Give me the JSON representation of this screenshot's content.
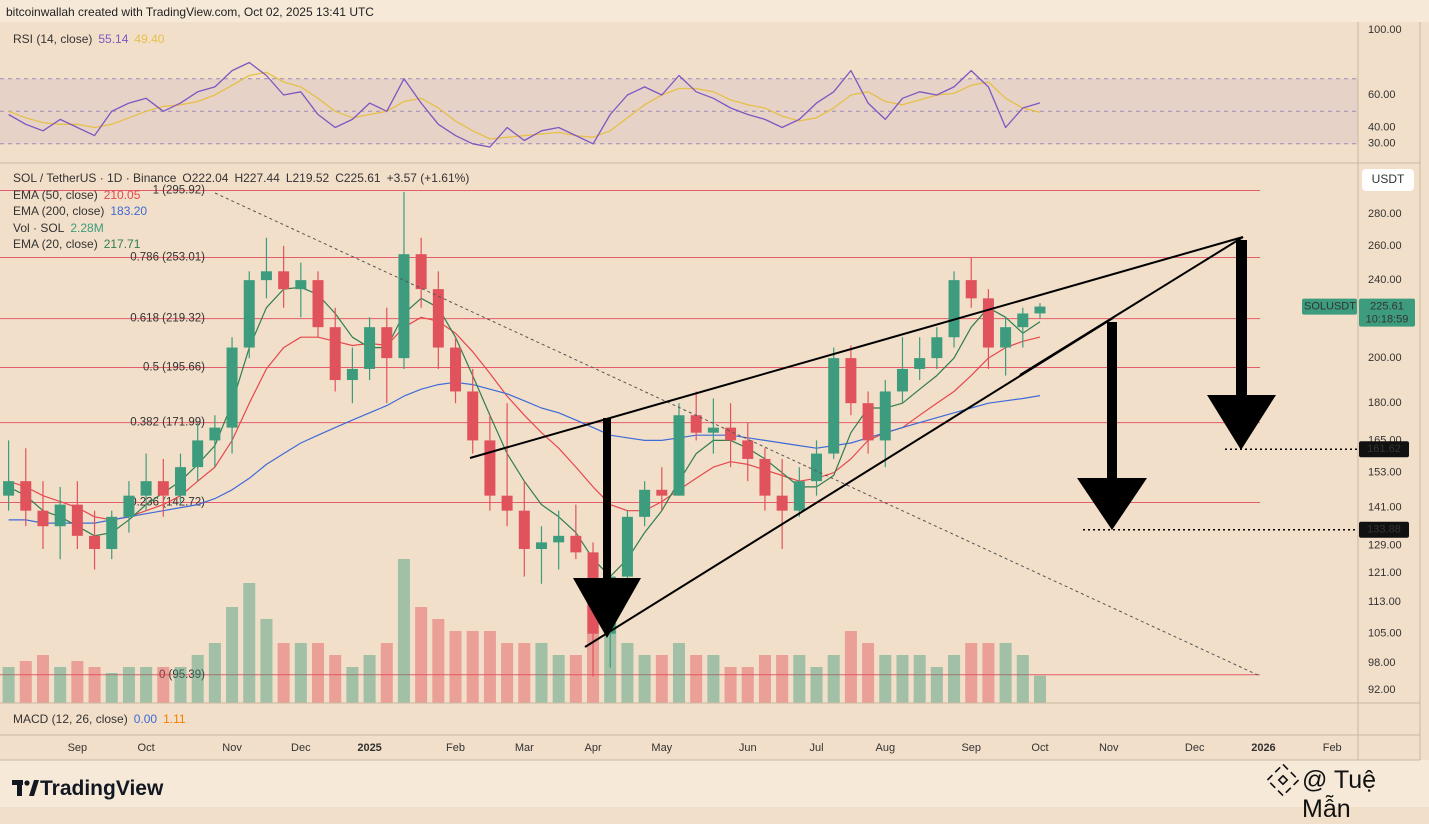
{
  "header": "bitcoinwallah created with TradingView.com, Oct 02, 2025 13:41 UTC",
  "footer": {
    "brand": "TradingView",
    "author": "@ Tuệ Mẫn"
  },
  "chart_data": {
    "type": "candlestick",
    "symbol": "SOL / TetherUS · 1D · Binance",
    "ohlc_labels": [
      "O222.04",
      "H227.44",
      "L219.52",
      "C225.61"
    ],
    "change": "+3.57 (+1.61%)",
    "currency": "USDT",
    "log": true,
    "grid": false,
    "up_color": "#3d9c7d",
    "down_color": "#e0535c",
    "ylim": [
      89.3,
      315.6
    ],
    "yticks": [
      {
        "value": 280,
        "label": "280.00"
      },
      {
        "value": 260,
        "label": "260.00"
      },
      {
        "value": 240,
        "label": "240.00"
      },
      {
        "value": 200,
        "label": "200.00"
      },
      {
        "value": 180,
        "label": "180.00"
      },
      {
        "value": 165,
        "label": "165.00"
      },
      {
        "value": 153,
        "label": "153.00"
      },
      {
        "value": 141,
        "label": "141.00"
      },
      {
        "value": 129,
        "label": "129.00"
      },
      {
        "value": 121,
        "label": "121.00"
      },
      {
        "value": 113,
        "label": "113.00"
      },
      {
        "value": 105,
        "label": "105.00"
      },
      {
        "value": 98,
        "label": "98.00"
      },
      {
        "value": 92,
        "label": "92.00"
      }
    ],
    "categories": [
      null,
      null,
      null,
      null,
      "Sep",
      null,
      null,
      null,
      "Oct",
      null,
      null,
      null,
      null,
      "Nov",
      null,
      null,
      null,
      "Dec",
      null,
      null,
      null,
      "2025",
      null,
      null,
      null,
      null,
      "Feb",
      null,
      null,
      null,
      "Mar",
      null,
      null,
      null,
      "Apr",
      null,
      null,
      null,
      "May",
      null,
      null,
      null,
      null,
      "Jun",
      null,
      null,
      null,
      "Jul",
      null,
      null,
      null,
      "Aug",
      null,
      null,
      null,
      null,
      "Sep",
      null,
      null,
      null,
      "Oct",
      null,
      null,
      null,
      "Nov",
      null,
      null,
      null,
      null,
      "Dec",
      null,
      null,
      null,
      "2026",
      null,
      null,
      null,
      "Feb",
      null
    ],
    "open": [
      145,
      150,
      140,
      135,
      142,
      132,
      128,
      138,
      145,
      150,
      145,
      155,
      165,
      170,
      205,
      240,
      245,
      235,
      240,
      215,
      190,
      195,
      215,
      200,
      255,
      235,
      205,
      185,
      165,
      145,
      140,
      128,
      130,
      132,
      127,
      105,
      120,
      138,
      147,
      145,
      175,
      168,
      170,
      165,
      158,
      145,
      140,
      150,
      160,
      200,
      180,
      165,
      185,
      195,
      200,
      210,
      240,
      230,
      205,
      215,
      222.04,
      null,
      null,
      null,
      null,
      null,
      null,
      null,
      null,
      null,
      null,
      null,
      null,
      null,
      null,
      null,
      null,
      null,
      null
    ],
    "high": [
      165,
      162,
      150,
      148,
      150,
      140,
      140,
      150,
      160,
      158,
      160,
      172,
      175,
      210,
      245,
      265,
      260,
      250,
      245,
      225,
      205,
      220,
      225,
      295,
      265,
      245,
      210,
      195,
      175,
      180,
      150,
      135,
      140,
      142,
      130,
      125,
      140,
      150,
      155,
      180,
      185,
      182,
      180,
      172,
      162,
      158,
      155,
      165,
      205,
      206,
      185,
      190,
      210,
      210,
      215,
      245,
      253,
      235,
      220,
      225,
      227.44,
      null,
      null,
      null,
      null,
      null,
      null,
      null,
      null,
      null,
      null,
      null,
      null,
      null,
      null,
      null,
      null,
      null,
      null
    ],
    "low": [
      140,
      135,
      128,
      125,
      128,
      122,
      125,
      133,
      140,
      138,
      142,
      150,
      155,
      160,
      200,
      230,
      225,
      220,
      210,
      185,
      180,
      190,
      180,
      195,
      225,
      195,
      180,
      160,
      140,
      135,
      120,
      118,
      122,
      125,
      95,
      97,
      118,
      135,
      140,
      145,
      165,
      160,
      155,
      150,
      140,
      128,
      138,
      145,
      158,
      175,
      160,
      155,
      180,
      190,
      195,
      205,
      225,
      195,
      192,
      205,
      219.52,
      null,
      null,
      null,
      null,
      null,
      null,
      null,
      null,
      null,
      null,
      null,
      null,
      null,
      null,
      null,
      null,
      null,
      null
    ],
    "close": [
      150,
      140,
      135,
      142,
      132,
      128,
      138,
      145,
      150,
      145,
      155,
      165,
      170,
      205,
      240,
      245,
      235,
      240,
      215,
      190,
      195,
      215,
      200,
      255,
      235,
      205,
      185,
      165,
      145,
      140,
      128,
      130,
      132,
      127,
      105,
      120,
      138,
      147,
      145,
      175,
      168,
      170,
      165,
      158,
      145,
      140,
      150,
      160,
      200,
      180,
      165,
      185,
      195,
      200,
      210,
      240,
      230,
      205,
      215,
      222,
      225.61,
      null,
      null,
      null,
      null,
      null,
      null,
      null,
      null,
      null,
      null,
      null,
      null,
      null,
      null,
      null,
      null,
      null,
      null
    ],
    "volume": {
      "name": "Vol · SOL",
      "value_label": "2.28M",
      "ylim": [
        0,
        45
      ],
      "values": [
        3,
        3.5,
        4,
        3,
        3.5,
        3,
        2.5,
        3,
        3,
        3,
        3,
        4,
        5,
        8,
        10,
        7,
        5,
        5,
        5,
        4,
        3,
        4,
        5,
        12,
        8,
        7,
        6,
        6,
        6,
        5,
        5,
        5,
        4,
        4,
        10,
        7,
        5,
        4,
        4,
        5,
        4,
        4,
        3,
        3,
        4,
        4,
        4,
        3,
        4,
        6,
        5,
        4,
        4,
        4,
        3,
        4,
        5,
        5,
        5,
        4,
        2.28,
        null,
        null,
        null,
        null,
        null,
        null,
        null,
        null,
        null,
        null,
        null,
        null,
        null,
        null,
        null,
        null,
        null,
        null
      ]
    },
    "lines": [
      {
        "name": "EMA (50, close)",
        "color": "#e5484d",
        "value_label": "210.05",
        "values": [
          150,
          148,
          145,
          143,
          141,
          138,
          137,
          138,
          140,
          142,
          145,
          150,
          155,
          165,
          180,
          195,
          205,
          210,
          210,
          208,
          206,
          207,
          206,
          215,
          220,
          218,
          212,
          203,
          193,
          183,
          175,
          168,
          162,
          155,
          148,
          142,
          140,
          140,
          143,
          147,
          151,
          155,
          157,
          156,
          154,
          152,
          150,
          151,
          153,
          158,
          165,
          168,
          170,
          175,
          180,
          185,
          192,
          200,
          205,
          208,
          210.05,
          null,
          null,
          null,
          null,
          null,
          null,
          null,
          null,
          null,
          null,
          null,
          null,
          null,
          null,
          null,
          null,
          null,
          null
        ]
      },
      {
        "name": "EMA (200, close)",
        "color": "#3f6ad8",
        "value_label": "183.20",
        "values": [
          137,
          137,
          136,
          136,
          136,
          136,
          137,
          138,
          139,
          140,
          141,
          142,
          144,
          147,
          151,
          156,
          160,
          164,
          167,
          170,
          173,
          176,
          179,
          183,
          186,
          188,
          189,
          188,
          186,
          184,
          181,
          178,
          176,
          173,
          170,
          167,
          166,
          165,
          165,
          166,
          167,
          167,
          167,
          166,
          165,
          164,
          163,
          162,
          163,
          164,
          166,
          168,
          170,
          172,
          174,
          176,
          178,
          180,
          181,
          182,
          183.2,
          null,
          null,
          null,
          null,
          null,
          null,
          null,
          null,
          null,
          null,
          null,
          null,
          null,
          null,
          null,
          null,
          null,
          null
        ]
      },
      {
        "name": "EMA (20, close)",
        "color": "#2f7d4f",
        "value_label": "217.71",
        "values": [
          148,
          145,
          140,
          138,
          135,
          132,
          133,
          137,
          142,
          146,
          150,
          156,
          163,
          180,
          205,
          225,
          235,
          236,
          232,
          222,
          210,
          205,
          205,
          222,
          230,
          225,
          210,
          192,
          175,
          160,
          150,
          142,
          138,
          133,
          125,
          120,
          125,
          133,
          140,
          150,
          160,
          165,
          165,
          162,
          158,
          153,
          148,
          148,
          152,
          168,
          178,
          178,
          180,
          186,
          192,
          200,
          215,
          225,
          220,
          212,
          217.71,
          null,
          null,
          null,
          null,
          null,
          null,
          null,
          null,
          null,
          null,
          null,
          null,
          null,
          null,
          null,
          null,
          null,
          null
        ]
      }
    ],
    "fib_color": "#e35d6a",
    "fib_levels": [
      {
        "label": "1 (295.92)",
        "value": 295.92
      },
      {
        "label": "0.786 (253.01)",
        "value": 253.01
      },
      {
        "label": "0.618 (219.32)",
        "value": 219.32
      },
      {
        "label": "0.5 (195.66)",
        "value": 195.66
      },
      {
        "label": "0.382 (171.99)",
        "value": 171.99
      },
      {
        "label": "0.236 (142.72)",
        "value": 142.72
      },
      {
        "label": "0 (95.39)",
        "value": 95.39
      }
    ],
    "price_lines": [
      {
        "value": 161.62,
        "label": "161.62"
      },
      {
        "value": 133.88,
        "label": "133.88"
      }
    ],
    "last_price": {
      "name": "SOLUSDT",
      "value": 225.61,
      "label": "225.61",
      "countdown": "10:18:59",
      "color": "#3d9c7d"
    },
    "rsi": {
      "name": "RSI (14, close)",
      "color": "#7e57c2",
      "ma_color": "#e6c04a",
      "value_label": "55.14",
      "ma_label": "49.40",
      "ylim": [
        20,
        100
      ],
      "yticks": [
        {
          "value": 100,
          "label": "100.00"
        },
        {
          "value": 60,
          "label": "60.00"
        },
        {
          "value": 40,
          "label": "40.00"
        },
        {
          "value": 30,
          "label": "30.00"
        }
      ],
      "bands": [
        70,
        50,
        30
      ],
      "values": [
        48,
        42,
        38,
        45,
        40,
        35,
        50,
        55,
        58,
        50,
        55,
        62,
        65,
        75,
        80,
        72,
        60,
        62,
        48,
        40,
        45,
        55,
        50,
        70,
        55,
        42,
        35,
        30,
        28,
        40,
        32,
        38,
        40,
        35,
        30,
        48,
        60,
        65,
        60,
        72,
        62,
        58,
        52,
        48,
        45,
        40,
        45,
        55,
        62,
        75,
        55,
        45,
        58,
        62,
        60,
        65,
        75,
        65,
        40,
        52,
        55.14,
        null,
        null,
        null,
        null,
        null,
        null,
        null,
        null,
        null,
        null,
        null,
        null,
        null,
        null,
        null,
        null,
        null,
        null
      ],
      "ma_values": [
        50,
        46,
        43,
        42,
        42,
        40,
        42,
        46,
        50,
        53,
        54,
        56,
        60,
        66,
        72,
        74,
        68,
        65,
        58,
        50,
        46,
        48,
        50,
        56,
        58,
        52,
        44,
        38,
        33,
        34,
        35,
        36,
        37,
        35,
        34,
        38,
        46,
        54,
        60,
        64,
        64,
        62,
        57,
        54,
        52,
        47,
        44,
        46,
        52,
        60,
        62,
        56,
        54,
        57,
        60,
        61,
        66,
        68,
        58,
        52,
        49.4,
        null,
        null,
        null,
        null,
        null,
        null,
        null,
        null,
        null,
        null,
        null,
        null,
        null,
        null,
        null,
        null,
        null,
        null
      ]
    },
    "macd": {
      "name": "MACD (12, 26, close)",
      "value_labels": [
        "0.00",
        "1.11"
      ],
      "colors": [
        "#3f6ad8",
        "#f57c00"
      ]
    }
  }
}
